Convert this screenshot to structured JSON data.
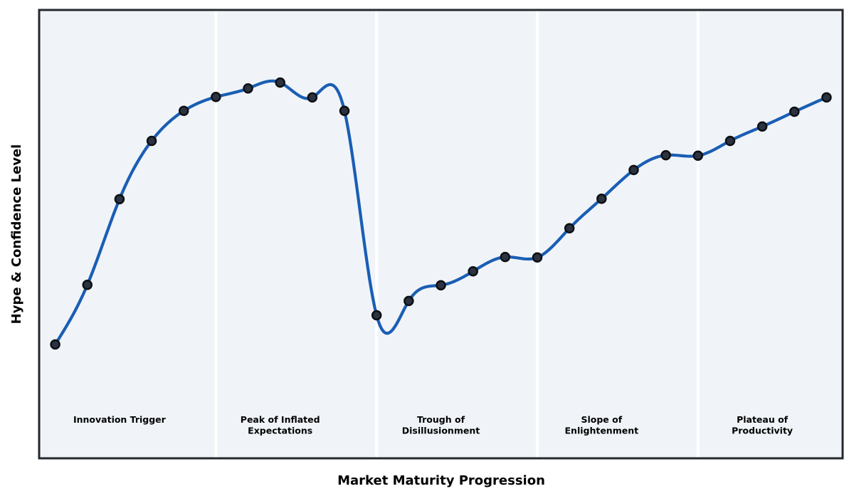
{
  "figure": {
    "xlabel": "Market Maturity Progression",
    "ylabel": "Hype & Confidence Level"
  },
  "colors": {
    "line": "#1a5eb4",
    "marker_fill": "#2b3342",
    "marker_edge": "#0d0f12",
    "plot_background": "#f0f4f8",
    "phase_divider": "#ffffff",
    "axis_border": "#25282d",
    "figure_background": "#ffffff",
    "label_text": "#000000"
  },
  "chart_data": {
    "type": "line",
    "title": "",
    "xlabel": "Market Maturity Progression",
    "ylabel": "Hype & Confidence Level",
    "curve_style": "smooth-cubic-spline",
    "marker": "circle",
    "grid": false,
    "legend_visible": false,
    "axis_ticks_visible": false,
    "xlim": [
      -0.5,
      24.5
    ],
    "ylim": [
      0,
      100
    ],
    "x": [
      0,
      1,
      2,
      3,
      4,
      5,
      6,
      7,
      8,
      9,
      10,
      11,
      12,
      13,
      14,
      15,
      16,
      17,
      18,
      19,
      20,
      21,
      22,
      23,
      24
    ],
    "values": [
      25.4,
      38.7,
      57.8,
      70.8,
      77.5,
      80.6,
      82.5,
      83.8,
      80.5,
      77.5,
      31.9,
      35.1,
      38.6,
      41.7,
      44.9,
      44.8,
      51.3,
      57.9,
      64.3,
      67.6,
      67.5,
      70.8,
      74.0,
      77.3,
      80.5
    ],
    "phase_boundaries_x": [
      5,
      10,
      15,
      20
    ],
    "phases": [
      {
        "label": "Innovation Trigger",
        "lines": [
          "Innovation Trigger"
        ],
        "center_x": 2
      },
      {
        "label": "Peak of Inflated Expectations",
        "lines": [
          "Peak of Inflated",
          "Expectations"
        ],
        "center_x": 7
      },
      {
        "label": "Trough of Disillusionment",
        "lines": [
          "Trough of",
          "Disillusionment"
        ],
        "center_x": 12
      },
      {
        "label": "Slope of Enlightenment",
        "lines": [
          "Slope of",
          "Enlightenment"
        ],
        "center_x": 17
      },
      {
        "label": "Plateau of Productivity",
        "lines": [
          "Plateau of",
          "Productivity"
        ],
        "center_x": 22
      }
    ]
  }
}
